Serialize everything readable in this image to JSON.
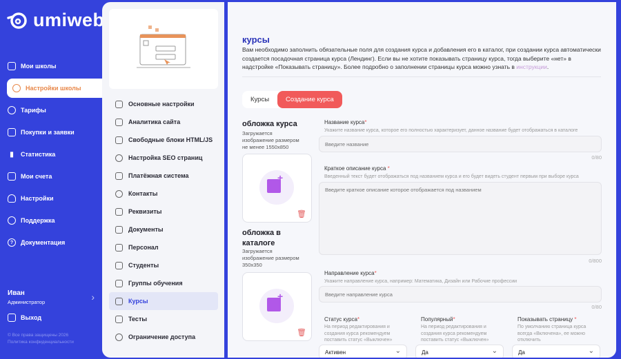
{
  "brand": {
    "name": "umiweb"
  },
  "sidebar": {
    "items": [
      {
        "label": "Мои школы",
        "icon": "graduation-cap-icon"
      },
      {
        "label": "Настройки школы",
        "icon": "gear-icon",
        "active": true
      },
      {
        "label": "Тарифы",
        "icon": "pie-chart-icon"
      },
      {
        "label": "Покупки и заявки",
        "icon": "wallet-icon"
      },
      {
        "label": "Статистика",
        "icon": "bar-chart-icon"
      },
      {
        "label": "Мои счета",
        "icon": "document-icon"
      },
      {
        "label": "Настройки",
        "icon": "user-icon"
      },
      {
        "label": "Поддержка",
        "icon": "users-icon"
      },
      {
        "label": "Документация",
        "icon": "help-icon"
      }
    ],
    "user": {
      "name": "Иван",
      "role": "Администратор"
    },
    "logout": "Выход",
    "copyright": "© Все права защищены 2026",
    "privacy": "Политика конфиденциальности"
  },
  "submenu": {
    "items": [
      {
        "label": "Основные настройки"
      },
      {
        "label": "Аналитика сайта"
      },
      {
        "label": "Свободные блоки HTML/JS"
      },
      {
        "label": "Настройка SEO страниц"
      },
      {
        "label": "Платёжная система"
      },
      {
        "label": "Контакты"
      },
      {
        "label": "Реквизиты"
      },
      {
        "label": "Документы"
      },
      {
        "label": "Персонал"
      },
      {
        "label": "Студенты"
      },
      {
        "label": "Группы обучения"
      },
      {
        "label": "Курсы",
        "active": true
      },
      {
        "label": "Тесты"
      },
      {
        "label": "Ограничение доступа"
      }
    ]
  },
  "main": {
    "title": "курсы",
    "intro": "Вам необходимо заполнить обязательные поля для создания курса и добавления его в каталог, при создании курса автоматически создается посадочная страница курса (Лендинг). Если вы не хотите показывать страницу курса, тогда выберите «нет» в надстройке «Показывать страницу». Более подробно о заполнении страницы курса можно узнать в ",
    "intro_link": "инструкции",
    "tabs": [
      "Курсы",
      "Создание курса"
    ],
    "cover": {
      "title": "обложка курса",
      "desc": "Загружается изображение размером не менее 1550x850"
    },
    "catalog_cover": {
      "title": "обложка в каталоге",
      "desc": "Загружается изображение размером 350x350"
    },
    "fields": {
      "name": {
        "label": "Название курса",
        "hint": "Укажите название курса, которое его полностью характеризует, данное название будет отображаться в каталоге",
        "placeholder": "Введите название",
        "counter": "0/80"
      },
      "short": {
        "label": "Краткое описание курса ",
        "hint": "Введенный текст будет отображаться под названием курса и его будет видеть студент первым при выборе курса",
        "placeholder": "Введите краткое описание которое отображается под названием",
        "counter": "0/800"
      },
      "direction": {
        "label": "Направление курса",
        "hint": "Укажите направление курса, например: Математика, Дизайн или Рабочие профессии",
        "placeholder": "Введите направление курса",
        "counter": "0/80"
      },
      "status": {
        "label": "Статус курса",
        "hint": "На период редактирования и создания курса рекомендуем поставить статус «Выключен»",
        "value": "Активен"
      },
      "popular": {
        "label": "Популярный",
        "hint": "На период редактирования и создания курса рекомендуем поставить статус «Выключен»",
        "value": "Да"
      },
      "show": {
        "label": "Показывать страницу ",
        "hint": "По умолчанию страница курса всегда «Включена», ее можно отключить",
        "value": "Да"
      }
    },
    "required_mark": "*"
  }
}
